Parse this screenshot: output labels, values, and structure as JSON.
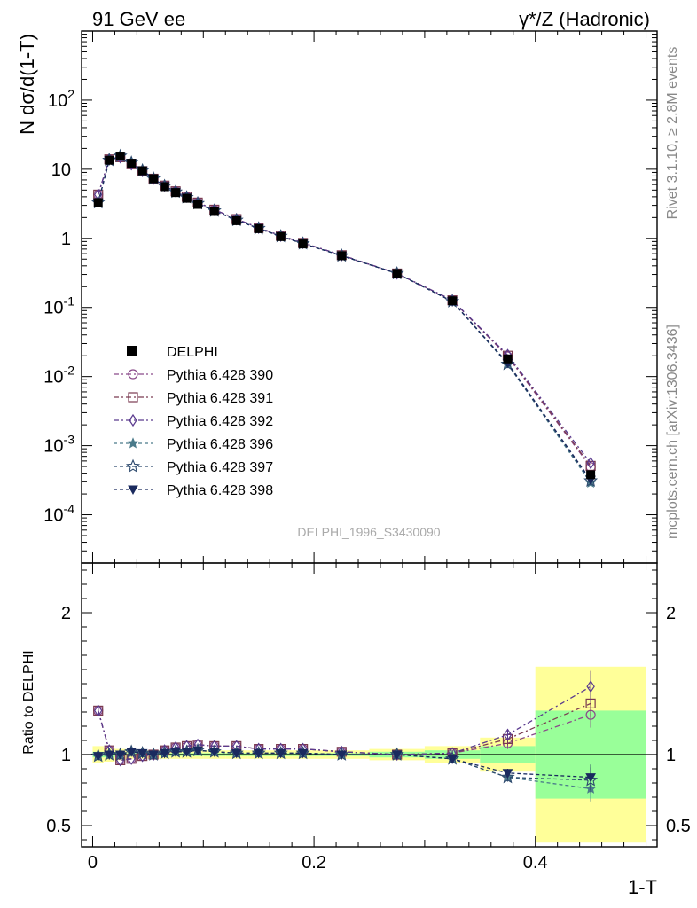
{
  "header": {
    "left_title": "91 GeV ee",
    "right_title": "γ*/Z (Hadronic)"
  },
  "side_text": {
    "rivet": "Rivet 3.1.10, ≥ 2.8M events",
    "mcplots": "mcplots.cern.ch [arXiv:1306.3436]"
  },
  "watermark": "DELPHI_1996_S3430090",
  "chart_data": [
    {
      "type": "line",
      "title": "",
      "ylabel": "N dσ/d(1-T)",
      "xlabel": "",
      "yscale": "log",
      "xlim": [
        -0.01,
        0.51
      ],
      "ylim": [
        2e-05,
        1000
      ],
      "y_tick_labels": [
        "10^-4",
        "10^-3",
        "10^-2",
        "10^-1",
        "1",
        "10",
        "10^2"
      ],
      "legend_position": "middle-left",
      "x": [
        0.005,
        0.015,
        0.025,
        0.035,
        0.045,
        0.055,
        0.065,
        0.075,
        0.085,
        0.095,
        0.11,
        0.13,
        0.15,
        0.17,
        0.19,
        0.225,
        0.275,
        0.325,
        0.375,
        0.45
      ],
      "reference": {
        "name": "DELPHI",
        "values": [
          3.3,
          13.5,
          15.5,
          12.2,
          9.5,
          7.3,
          5.6,
          4.6,
          3.8,
          3.1,
          2.45,
          1.8,
          1.38,
          1.06,
          0.83,
          0.56,
          0.31,
          0.125,
          0.018,
          0.00038
        ]
      },
      "series": [
        {
          "name": "Pythia 6.428 390",
          "color": "#8a4a8a",
          "values": [
            4.3,
            13.9,
            14.9,
            11.8,
            9.4,
            7.3,
            5.8,
            4.8,
            4.0,
            3.3,
            2.6,
            1.9,
            1.42,
            1.09,
            0.86,
            0.57,
            0.31,
            0.127,
            0.0195,
            0.00049
          ]
        },
        {
          "name": "Pythia 6.428 391",
          "color": "#7a3a50",
          "values": [
            4.3,
            13.9,
            14.9,
            11.8,
            9.4,
            7.3,
            5.8,
            4.8,
            4.0,
            3.3,
            2.6,
            1.9,
            1.42,
            1.09,
            0.86,
            0.57,
            0.31,
            0.127,
            0.02,
            0.00051
          ]
        },
        {
          "name": "Pythia 6.428 392",
          "color": "#5a3a8e",
          "values": [
            4.3,
            13.9,
            14.9,
            11.8,
            9.4,
            7.3,
            5.8,
            4.8,
            4.0,
            3.3,
            2.6,
            1.9,
            1.42,
            1.09,
            0.86,
            0.57,
            0.31,
            0.127,
            0.0205,
            0.00056
          ]
        },
        {
          "name": "Pythia 6.428 396",
          "color": "#4a7a8a",
          "values": [
            3.3,
            13.5,
            15.5,
            12.4,
            9.6,
            7.3,
            5.7,
            4.7,
            3.9,
            3.2,
            2.5,
            1.83,
            1.39,
            1.07,
            0.84,
            0.56,
            0.31,
            0.122,
            0.0152,
            0.00029
          ]
        },
        {
          "name": "Pythia 6.428 397",
          "color": "#2e4a6e",
          "values": [
            3.3,
            13.5,
            15.5,
            12.4,
            9.6,
            7.3,
            5.7,
            4.7,
            3.9,
            3.2,
            2.5,
            1.83,
            1.39,
            1.07,
            0.84,
            0.56,
            0.31,
            0.122,
            0.0151,
            0.00031
          ]
        },
        {
          "name": "Pythia 6.428 398",
          "color": "#1a2a5e",
          "values": [
            3.3,
            13.5,
            15.5,
            12.4,
            9.6,
            7.3,
            5.7,
            4.7,
            3.9,
            3.2,
            2.5,
            1.83,
            1.39,
            1.07,
            0.84,
            0.56,
            0.31,
            0.122,
            0.0157,
            0.00032
          ]
        }
      ]
    },
    {
      "type": "line",
      "title": "",
      "ylabel": "Ratio to DELPHI",
      "xlabel": "1-T",
      "xlim": [
        -0.01,
        0.51
      ],
      "ylim": [
        0.35,
        2.35
      ],
      "x_tick_labels": [
        "0",
        "0.2",
        "0.4"
      ],
      "y_tick_labels": [
        "0.5",
        "1",
        "2"
      ],
      "bin_edges": [
        0.0,
        0.01,
        0.02,
        0.03,
        0.04,
        0.05,
        0.06,
        0.07,
        0.08,
        0.09,
        0.1,
        0.12,
        0.14,
        0.16,
        0.18,
        0.2,
        0.25,
        0.3,
        0.35,
        0.4,
        0.5
      ],
      "band_stat": [
        0.02,
        0.02,
        0.01,
        0.01,
        0.01,
        0.01,
        0.01,
        0.01,
        0.01,
        0.01,
        0.01,
        0.01,
        0.01,
        0.01,
        0.01,
        0.01,
        0.02,
        0.03,
        0.06,
        0.31
      ],
      "band_total": [
        0.06,
        0.05,
        0.04,
        0.03,
        0.03,
        0.03,
        0.03,
        0.03,
        0.03,
        0.03,
        0.03,
        0.03,
        0.03,
        0.03,
        0.03,
        0.03,
        0.04,
        0.06,
        0.12,
        0.62
      ],
      "x": [
        0.005,
        0.015,
        0.025,
        0.035,
        0.045,
        0.055,
        0.065,
        0.075,
        0.085,
        0.095,
        0.11,
        0.13,
        0.15,
        0.17,
        0.19,
        0.225,
        0.275,
        0.325,
        0.375,
        0.45
      ],
      "series": [
        {
          "name": "Pythia 6.428 390",
          "values": [
            1.31,
            1.03,
            0.96,
            0.97,
            0.99,
            1.0,
            1.03,
            1.05,
            1.06,
            1.07,
            1.06,
            1.06,
            1.04,
            1.04,
            1.04,
            1.02,
            1.0,
            1.01,
            1.08,
            1.28
          ],
          "errors": [
            0.02,
            0.01,
            0.01,
            0.01,
            0.01,
            0.01,
            0.01,
            0.01,
            0.01,
            0.01,
            0.01,
            0.01,
            0.01,
            0.01,
            0.01,
            0.01,
            0.01,
            0.02,
            0.04,
            0.09
          ]
        },
        {
          "name": "Pythia 6.428 391",
          "values": [
            1.31,
            1.03,
            0.96,
            0.97,
            0.99,
            1.0,
            1.03,
            1.05,
            1.06,
            1.07,
            1.06,
            1.06,
            1.04,
            1.04,
            1.04,
            1.02,
            1.0,
            1.01,
            1.11,
            1.36
          ],
          "errors": [
            0.02,
            0.01,
            0.01,
            0.01,
            0.01,
            0.01,
            0.01,
            0.01,
            0.01,
            0.01,
            0.01,
            0.01,
            0.01,
            0.01,
            0.01,
            0.01,
            0.01,
            0.02,
            0.04,
            0.1
          ]
        },
        {
          "name": "Pythia 6.428 392",
          "values": [
            1.31,
            1.03,
            0.96,
            0.97,
            0.99,
            1.0,
            1.03,
            1.05,
            1.06,
            1.07,
            1.06,
            1.06,
            1.04,
            1.04,
            1.04,
            1.02,
            1.0,
            1.01,
            1.14,
            1.48
          ],
          "errors": [
            0.02,
            0.01,
            0.01,
            0.01,
            0.01,
            0.01,
            0.01,
            0.01,
            0.01,
            0.01,
            0.01,
            0.01,
            0.01,
            0.01,
            0.01,
            0.01,
            0.01,
            0.02,
            0.04,
            0.11
          ]
        },
        {
          "name": "Pythia 6.428 396",
          "values": [
            0.99,
            1.0,
            1.0,
            1.02,
            1.01,
            1.0,
            1.01,
            1.02,
            1.02,
            1.03,
            1.02,
            1.01,
            1.01,
            1.01,
            1.01,
            1.0,
            1.0,
            0.97,
            0.84,
            0.76
          ],
          "errors": [
            0.02,
            0.01,
            0.01,
            0.01,
            0.01,
            0.01,
            0.01,
            0.01,
            0.01,
            0.01,
            0.01,
            0.01,
            0.01,
            0.01,
            0.01,
            0.01,
            0.01,
            0.02,
            0.03,
            0.09
          ]
        },
        {
          "name": "Pythia 6.428 397",
          "values": [
            0.99,
            1.0,
            1.0,
            1.02,
            1.01,
            1.0,
            1.01,
            1.02,
            1.02,
            1.03,
            1.02,
            1.01,
            1.01,
            1.01,
            1.01,
            1.0,
            1.0,
            0.97,
            0.84,
            0.82
          ],
          "errors": [
            0.02,
            0.01,
            0.01,
            0.01,
            0.01,
            0.01,
            0.01,
            0.01,
            0.01,
            0.01,
            0.01,
            0.01,
            0.01,
            0.01,
            0.01,
            0.01,
            0.01,
            0.02,
            0.03,
            0.09
          ]
        },
        {
          "name": "Pythia 6.428 398",
          "values": [
            0.99,
            1.0,
            1.0,
            1.02,
            1.01,
            1.0,
            1.01,
            1.02,
            1.02,
            1.03,
            1.02,
            1.01,
            1.01,
            1.01,
            1.01,
            1.0,
            1.0,
            0.97,
            0.87,
            0.84
          ],
          "errors": [
            0.02,
            0.01,
            0.01,
            0.01,
            0.01,
            0.01,
            0.01,
            0.01,
            0.01,
            0.01,
            0.01,
            0.01,
            0.01,
            0.01,
            0.01,
            0.01,
            0.01,
            0.02,
            0.03,
            0.09
          ]
        }
      ]
    }
  ]
}
